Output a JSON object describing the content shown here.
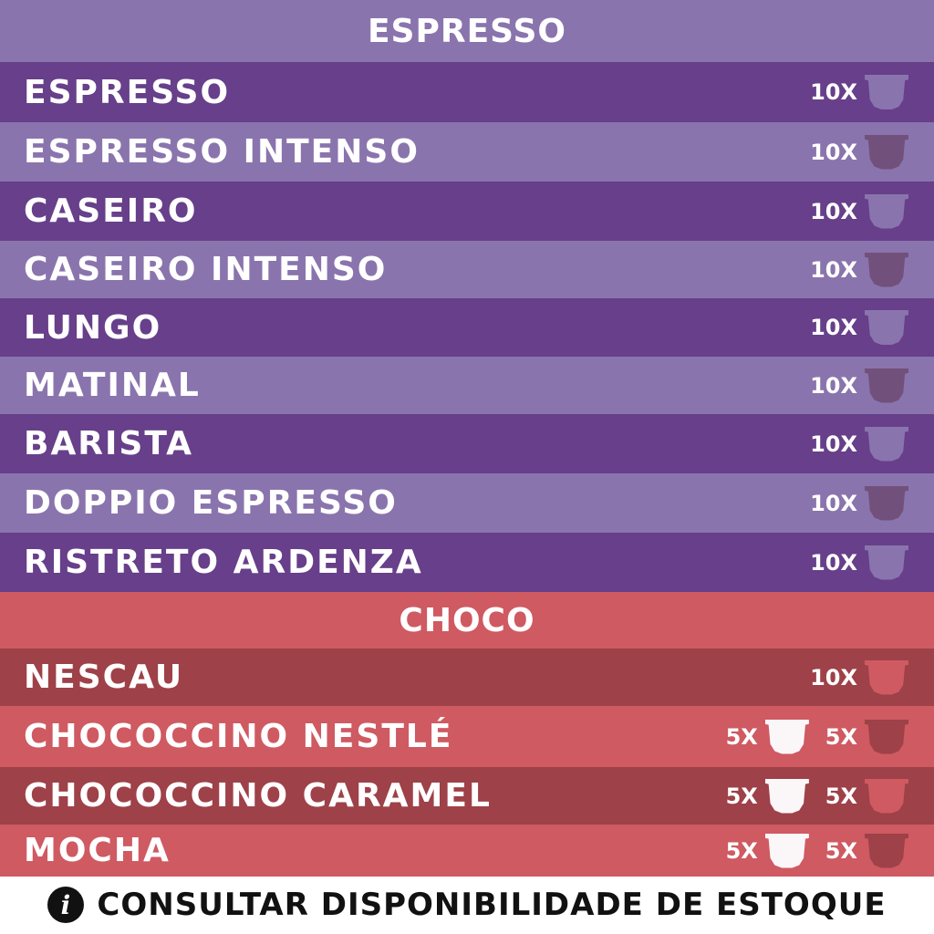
{
  "colors": {
    "purple_header": "#8a74ad",
    "purple_dark": "#673f8a",
    "purple_light": "#8a74ad",
    "red_header": "#cf5a62",
    "red_dark": "#9e4148",
    "red_light": "#cf5a62",
    "cap_white": "#fbf7f9"
  },
  "sections": [
    {
      "title": "ESPRESSO",
      "items": [
        {
          "name": "ESPRESSO",
          "qty": [
            "10X"
          ]
        },
        {
          "name": "ESPRESSO INTENSO",
          "qty": [
            "10X"
          ]
        },
        {
          "name": "CASEIRO",
          "qty": [
            "10X"
          ]
        },
        {
          "name": "CASEIRO INTENSO",
          "qty": [
            "10X"
          ]
        },
        {
          "name": "LUNGO",
          "qty": [
            "10X"
          ]
        },
        {
          "name": "MATINAL",
          "qty": [
            "10X"
          ]
        },
        {
          "name": "BARISTA",
          "qty": [
            "10X"
          ]
        },
        {
          "name": "DOPPIO ESPRESSO",
          "qty": [
            "10X"
          ]
        },
        {
          "name": "RISTRETO ARDENZA",
          "qty": [
            "10X"
          ]
        }
      ]
    },
    {
      "title": "CHOCO",
      "items": [
        {
          "name": "NESCAU",
          "qty": [
            "10X"
          ]
        },
        {
          "name": "CHOCOCCINO NESTLÉ",
          "qty": [
            "5X",
            "5X"
          ]
        },
        {
          "name": "CHOCOCCINO CARAMEL",
          "qty": [
            "5X",
            "5X"
          ]
        },
        {
          "name": "MOCHA",
          "qty": [
            "5X",
            "5X"
          ]
        }
      ]
    }
  ],
  "footer": {
    "icon": "info-icon",
    "icon_glyph": "i",
    "text": "CONSULTAR DISPONIBILIDADE DE ESTOQUE"
  }
}
